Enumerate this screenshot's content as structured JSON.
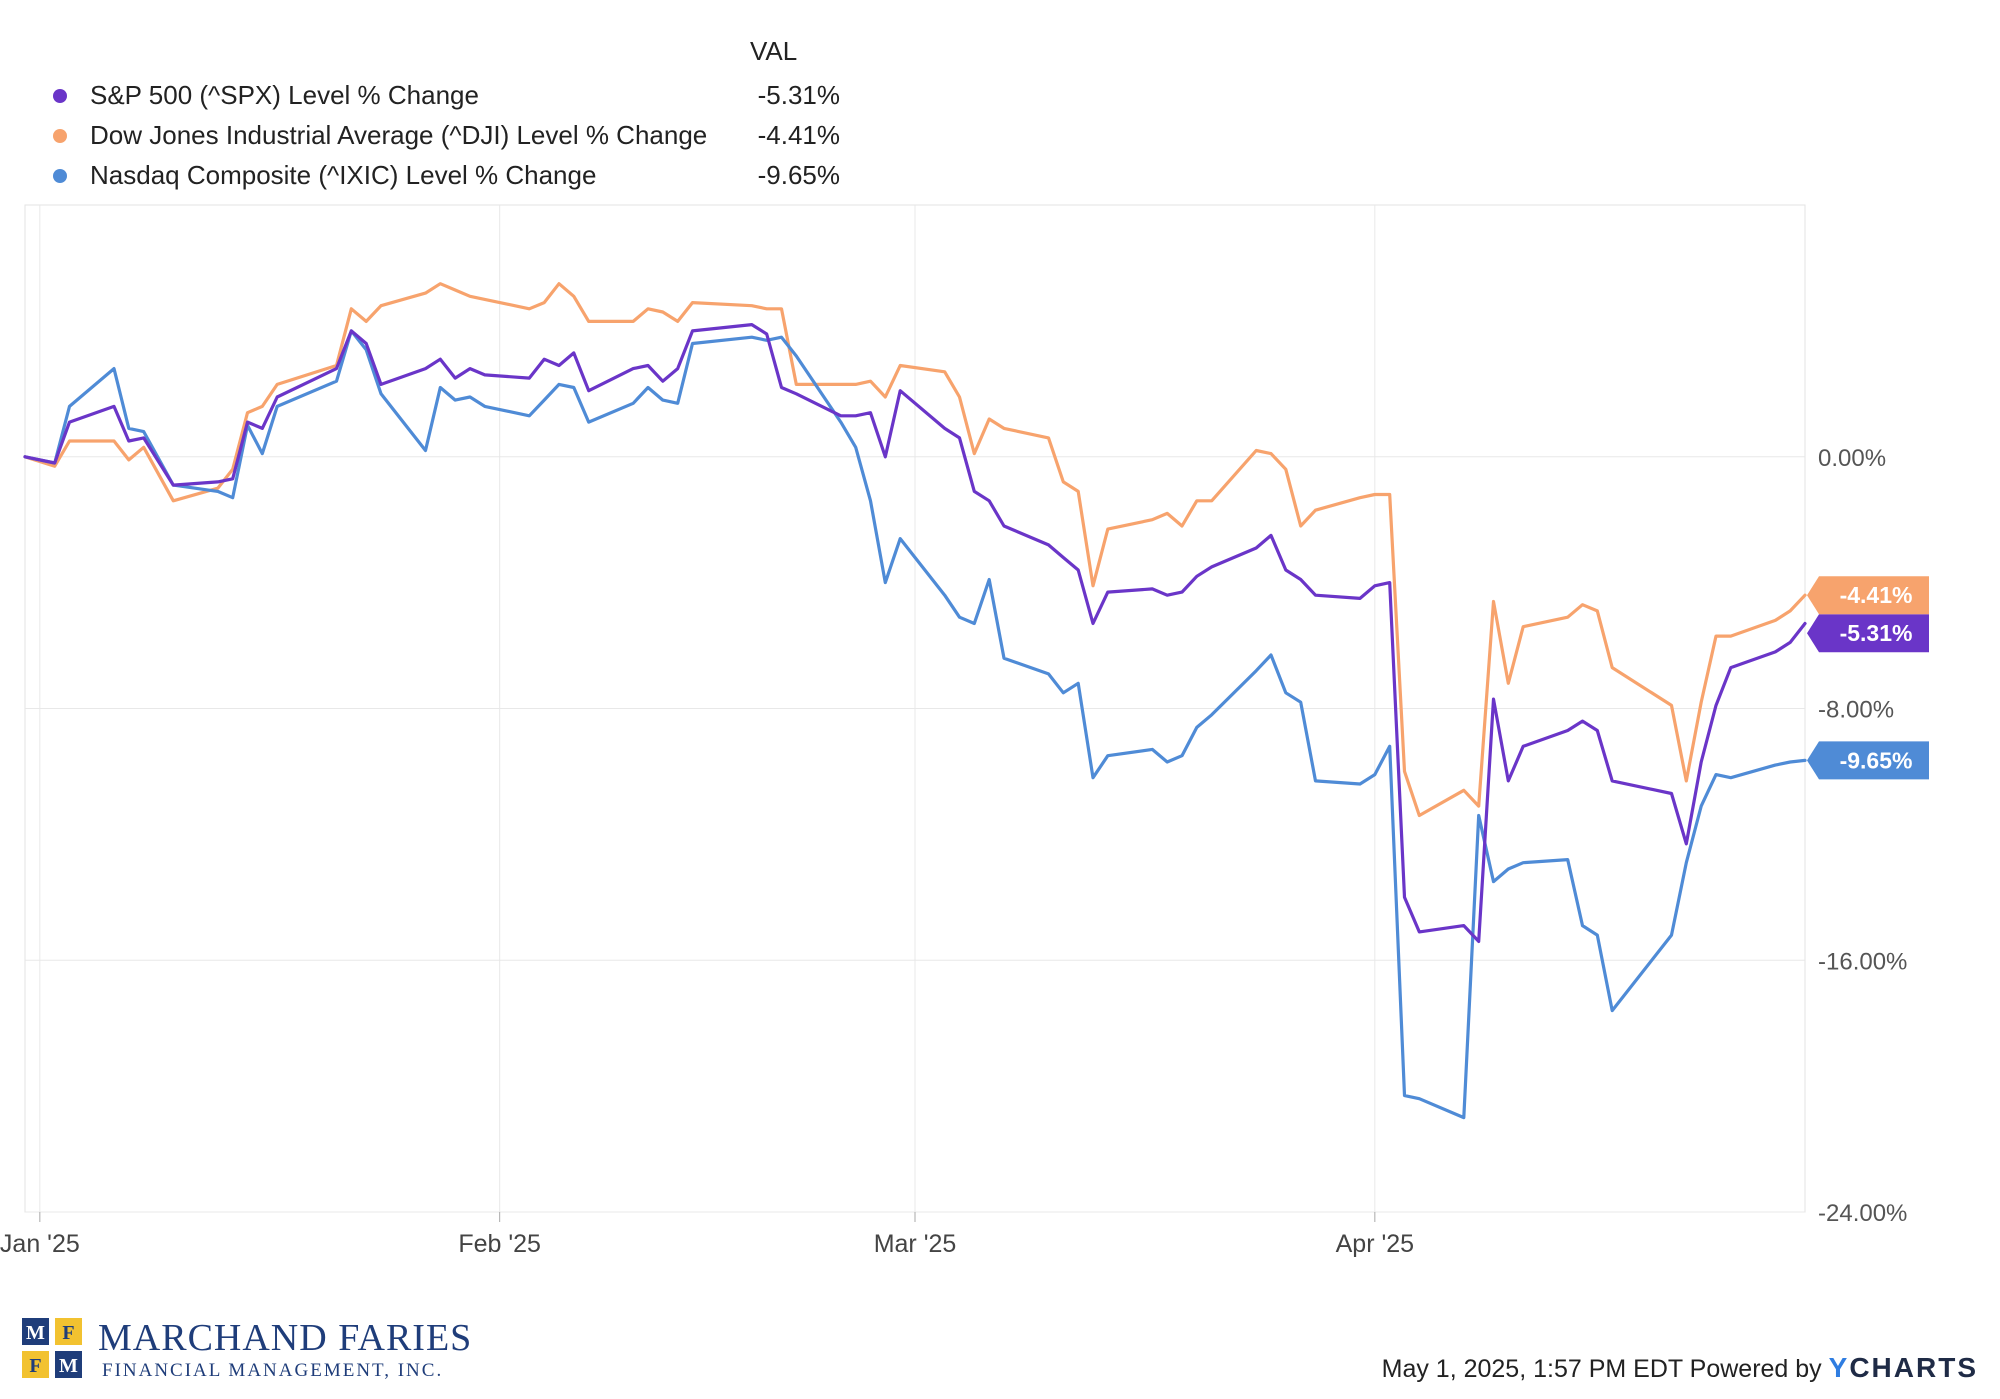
{
  "chart_data": {
    "type": "line",
    "legend": {
      "header": "VAL",
      "placement": "top-left"
    },
    "x_ticks": [
      "Jan '25",
      "Feb '25",
      "Mar '25",
      "Apr '25"
    ],
    "x_tick_dates": [
      "2025-01-01",
      "2025-02-01",
      "2025-03-01",
      "2025-04-01"
    ],
    "x_range": [
      "2024-12-31",
      "2025-04-30"
    ],
    "y_ticks": [
      "0.00%",
      "-8.00%",
      "-16.00%",
      "-24.00%"
    ],
    "y_tick_values": [
      0,
      -8,
      -16,
      -24
    ],
    "ylim": [
      -24,
      8
    ],
    "y_axis_side": "right",
    "grid": true,
    "x": [
      "2024-12-31",
      "2025-01-02",
      "2025-01-03",
      "2025-01-06",
      "2025-01-07",
      "2025-01-08",
      "2025-01-10",
      "2025-01-13",
      "2025-01-14",
      "2025-01-15",
      "2025-01-16",
      "2025-01-17",
      "2025-01-21",
      "2025-01-22",
      "2025-01-23",
      "2025-01-24",
      "2025-01-27",
      "2025-01-28",
      "2025-01-29",
      "2025-01-30",
      "2025-01-31",
      "2025-02-03",
      "2025-02-04",
      "2025-02-05",
      "2025-02-06",
      "2025-02-07",
      "2025-02-10",
      "2025-02-11",
      "2025-02-12",
      "2025-02-13",
      "2025-02-14",
      "2025-02-18",
      "2025-02-19",
      "2025-02-20",
      "2025-02-21",
      "2025-02-24",
      "2025-02-25",
      "2025-02-26",
      "2025-02-27",
      "2025-02-28",
      "2025-03-03",
      "2025-03-04",
      "2025-03-05",
      "2025-03-06",
      "2025-03-07",
      "2025-03-10",
      "2025-03-11",
      "2025-03-12",
      "2025-03-13",
      "2025-03-14",
      "2025-03-17",
      "2025-03-18",
      "2025-03-19",
      "2025-03-20",
      "2025-03-21",
      "2025-03-24",
      "2025-03-25",
      "2025-03-26",
      "2025-03-27",
      "2025-03-28",
      "2025-03-31",
      "2025-04-01",
      "2025-04-02",
      "2025-04-03",
      "2025-04-04",
      "2025-04-07",
      "2025-04-08",
      "2025-04-09",
      "2025-04-10",
      "2025-04-11",
      "2025-04-14",
      "2025-04-15",
      "2025-04-16",
      "2025-04-17",
      "2025-04-21",
      "2025-04-22",
      "2025-04-23",
      "2025-04-24",
      "2025-04-25",
      "2025-04-28",
      "2025-04-29",
      "2025-04-30"
    ],
    "series": [
      {
        "name": "S&P 500 (^SPX) Level % Change",
        "latest": "-5.31%",
        "color": "#6a35c8",
        "values": [
          0.0,
          -0.2,
          1.1,
          1.6,
          0.5,
          0.6,
          -0.9,
          -0.8,
          -0.7,
          1.1,
          0.9,
          1.9,
          2.8,
          4.0,
          3.6,
          2.3,
          2.8,
          3.1,
          2.5,
          2.8,
          2.6,
          2.5,
          3.1,
          2.9,
          3.3,
          2.1,
          2.8,
          2.9,
          2.4,
          2.8,
          4.0,
          4.2,
          3.9,
          2.2,
          2.0,
          1.3,
          1.3,
          1.4,
          0.0,
          2.1,
          0.9,
          0.6,
          -1.1,
          -1.4,
          -2.2,
          -2.8,
          -3.2,
          -3.6,
          -5.3,
          -4.3,
          -4.2,
          -4.4,
          -4.3,
          -3.8,
          -3.5,
          -2.9,
          -2.5,
          -3.6,
          -3.9,
          -4.4,
          -4.5,
          -4.1,
          -4.0,
          -14.0,
          -15.1,
          -14.9,
          -15.4,
          -7.7,
          -10.3,
          -9.2,
          -8.7,
          -8.4,
          -8.7,
          -10.3,
          -10.7,
          -12.3,
          -9.7,
          -7.9,
          -6.7,
          -6.2,
          -5.9,
          -5.3
        ]
      },
      {
        "name": "Dow Jones Industrial Average (^DJI) Level % Change",
        "latest": "-4.41%",
        "color": "#f7a36d",
        "values": [
          0.0,
          -0.3,
          0.5,
          0.5,
          -0.1,
          0.3,
          -1.4,
          -1.0,
          -0.4,
          1.4,
          1.6,
          2.3,
          2.9,
          4.7,
          4.3,
          4.8,
          5.2,
          5.5,
          5.3,
          5.1,
          5.0,
          4.7,
          4.9,
          5.5,
          5.1,
          4.3,
          4.3,
          4.7,
          4.6,
          4.3,
          4.9,
          4.8,
          4.7,
          4.7,
          2.3,
          2.3,
          2.3,
          2.4,
          1.9,
          2.9,
          2.7,
          1.9,
          0.1,
          1.2,
          0.9,
          0.6,
          -0.8,
          -1.1,
          -4.1,
          -2.3,
          -2.0,
          -1.8,
          -2.2,
          -1.4,
          -1.4,
          0.2,
          0.1,
          -0.4,
          -2.2,
          -1.7,
          -1.3,
          -1.2,
          -1.2,
          -10.0,
          -11.4,
          -10.6,
          -11.1,
          -4.6,
          -7.2,
          -5.4,
          -5.1,
          -4.7,
          -4.9,
          -6.7,
          -7.9,
          -10.3,
          -7.8,
          -5.7,
          -5.7,
          -5.2,
          -4.9,
          -4.4
        ]
      },
      {
        "name": "Nasdaq Composite (^IXIC) Level % Change",
        "latest": "-9.65%",
        "color": "#4f8bd6",
        "values": [
          0.0,
          -0.2,
          1.6,
          2.8,
          0.9,
          0.8,
          -0.9,
          -1.1,
          -1.3,
          1.0,
          0.1,
          1.6,
          2.4,
          4.0,
          3.4,
          2.0,
          0.2,
          2.2,
          1.8,
          1.9,
          1.6,
          1.3,
          1.8,
          2.3,
          2.2,
          1.1,
          1.7,
          2.2,
          1.8,
          1.7,
          3.6,
          3.8,
          3.7,
          3.8,
          3.2,
          1.1,
          0.3,
          -1.4,
          -4.0,
          -2.6,
          -4.4,
          -5.1,
          -5.3,
          -3.9,
          -6.4,
          -6.9,
          -7.5,
          -7.2,
          -10.2,
          -9.5,
          -9.3,
          -9.7,
          -9.5,
          -8.6,
          -8.2,
          -6.8,
          -6.3,
          -7.5,
          -7.8,
          -10.3,
          -10.4,
          -10.1,
          -9.2,
          -20.3,
          -20.4,
          -21.0,
          -11.4,
          -13.5,
          -13.1,
          -12.9,
          -12.8,
          -14.9,
          -15.2,
          -17.6,
          -15.2,
          -12.9,
          -11.1,
          -10.1,
          -10.2,
          -9.8,
          -9.7,
          -9.65
        ]
      }
    ]
  },
  "branding": {
    "logo_letters": [
      "M",
      "F",
      "F",
      "M"
    ],
    "logo_line1": "MARCHAND FARIES",
    "logo_line2": "FINANCIAL MANAGEMENT, INC.",
    "footer_timestamp": "May 1, 2025, 1:57 PM EDT",
    "footer_powered": "Powered by",
    "footer_brand_y": "Y",
    "footer_brand_rest": "CHARTS"
  }
}
